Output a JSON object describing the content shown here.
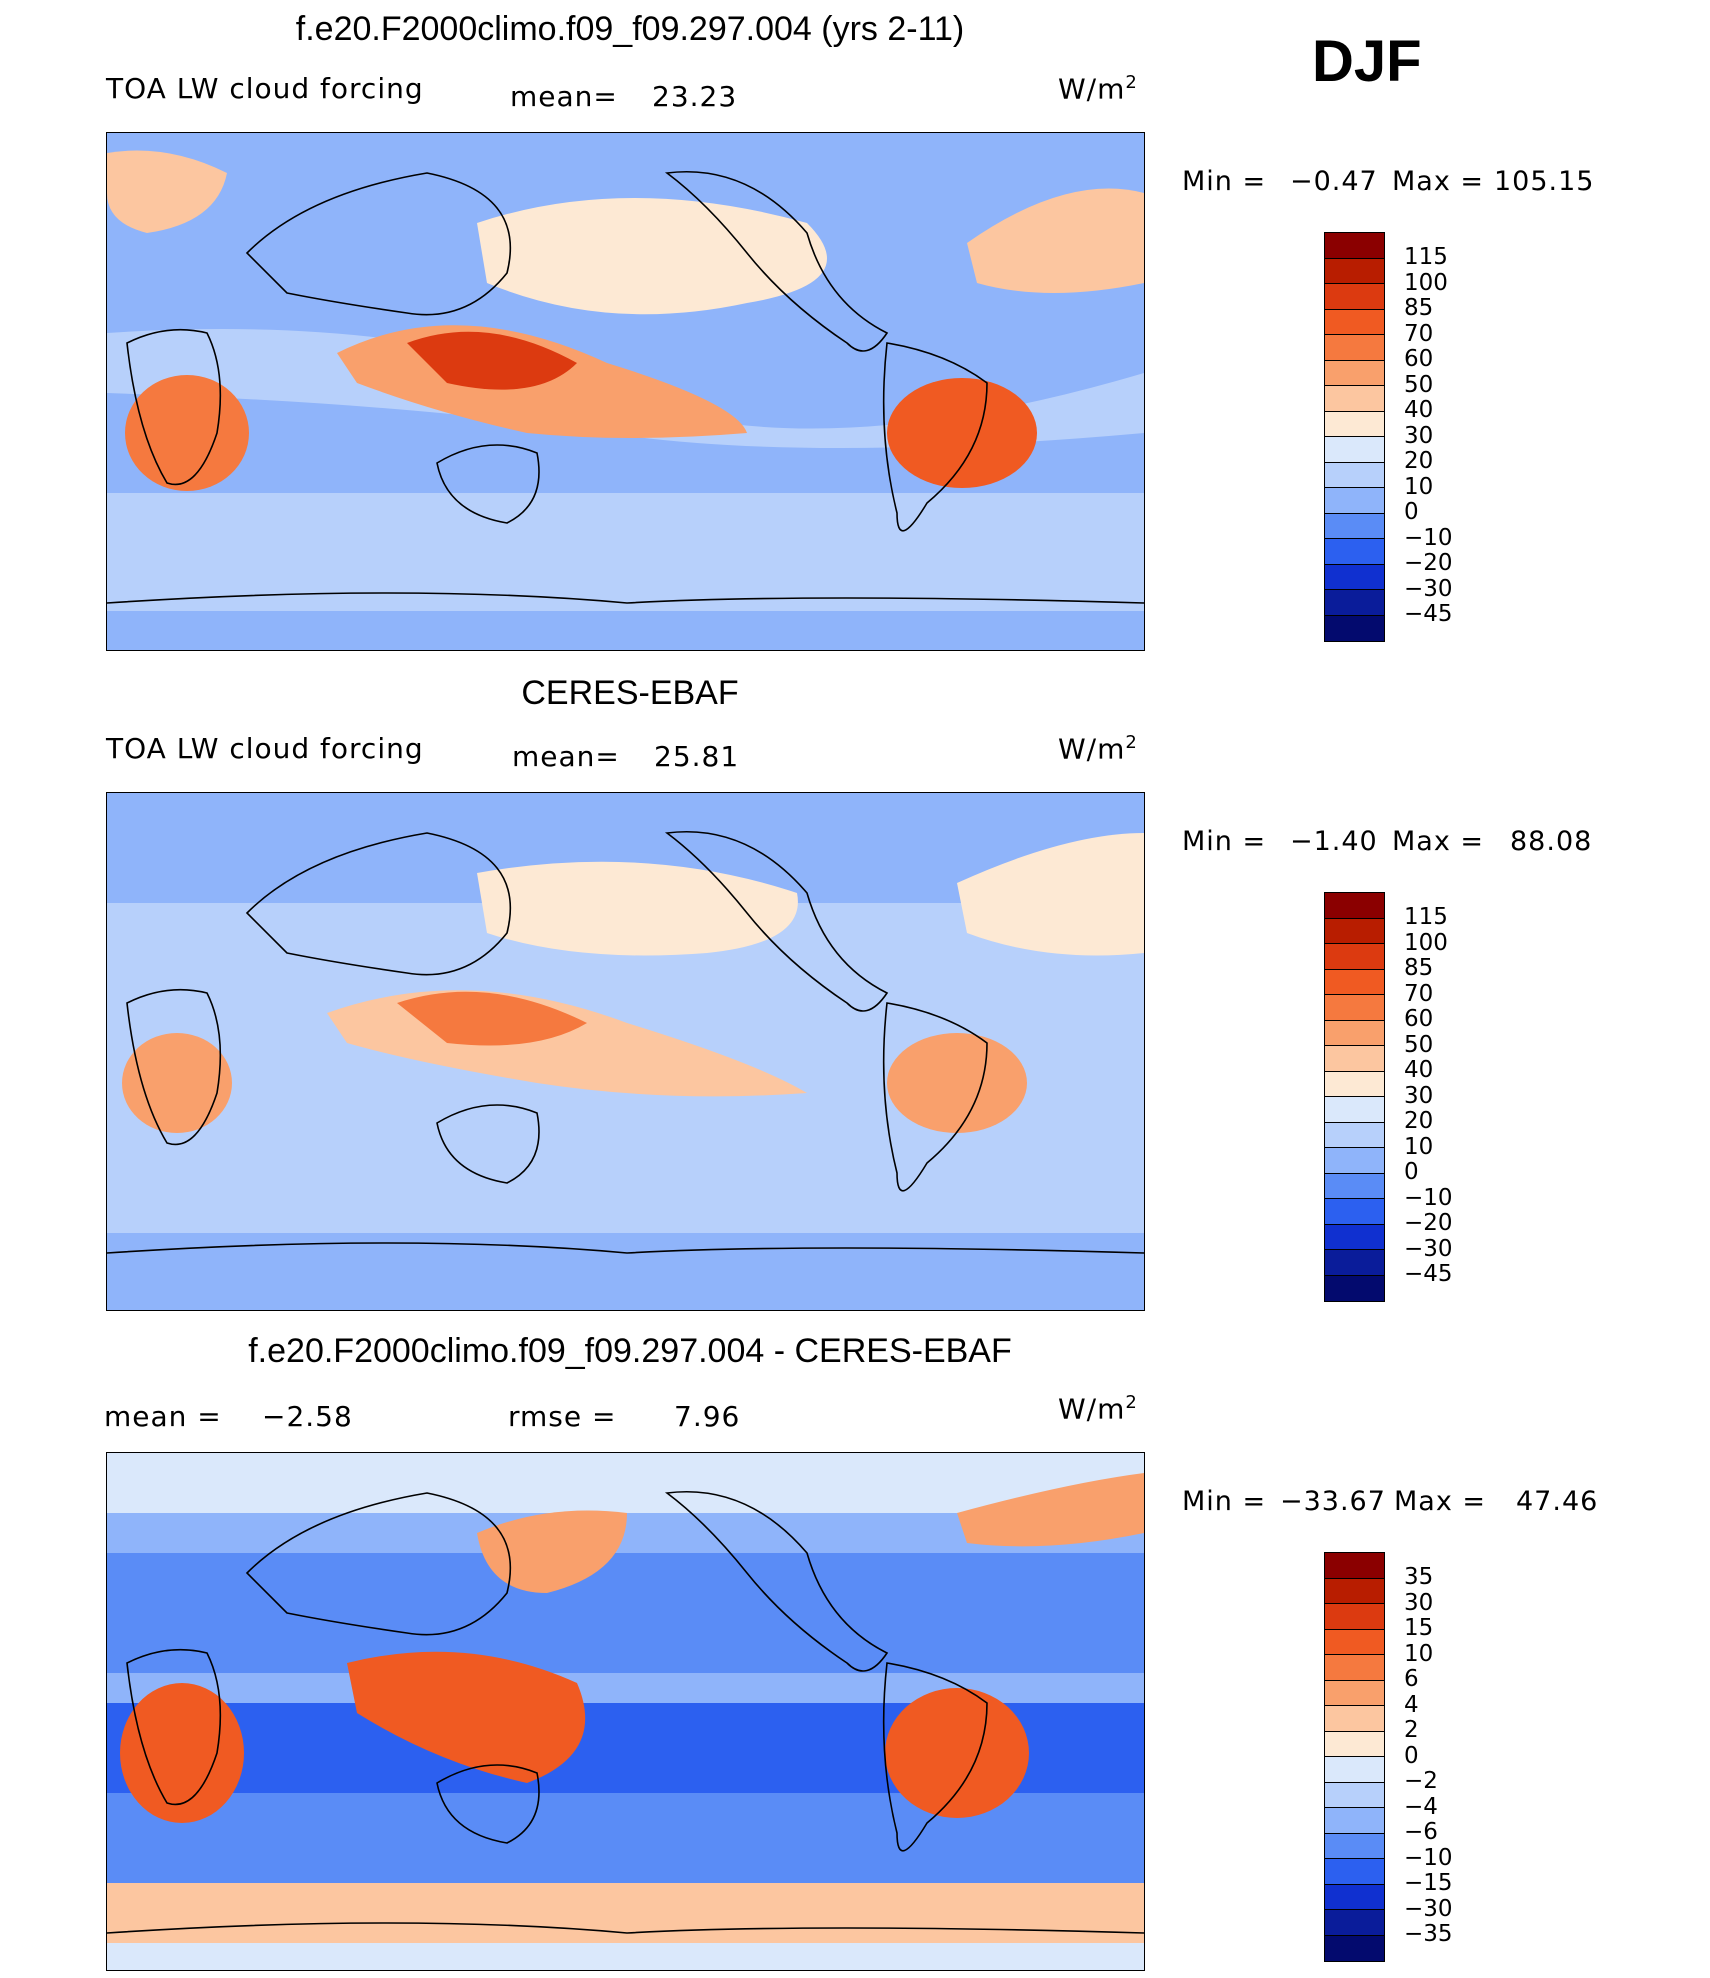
{
  "figure": {
    "season": "DJF"
  },
  "panels": [
    {
      "title": "f.e20.F2000climo.f09_f09.297.004 (yrs 2-11)",
      "left_label": "TOA LW cloud forcing",
      "mean_label": "mean=",
      "mean_value": "23.23",
      "units": "W/m",
      "units_sup": "2",
      "min_label": "Min =",
      "min_value": "−0.47",
      "max_label": "Max =",
      "max_value": "105.15",
      "levels": [
        "115",
        "100",
        "85",
        "70",
        "60",
        "50",
        "40",
        "30",
        "20",
        "10",
        "0",
        "−10",
        "−20",
        "−30",
        "−45"
      ]
    },
    {
      "title": "CERES-EBAF",
      "left_label": "TOA LW cloud forcing",
      "mean_label": "mean=",
      "mean_value": "25.81",
      "units": "W/m",
      "units_sup": "2",
      "min_label": "Min =",
      "min_value": "−1.40",
      "max_label": "Max =",
      "max_value": "88.08",
      "levels": [
        "115",
        "100",
        "85",
        "70",
        "60",
        "50",
        "40",
        "30",
        "20",
        "10",
        "0",
        "−10",
        "−20",
        "−30",
        "−45"
      ]
    },
    {
      "title": "f.e20.F2000climo.f09_f09.297.004 - CERES-EBAF",
      "left_label": "mean =",
      "mean_value": "−2.58",
      "rmse_label": "rmse =",
      "rmse_value": "7.96",
      "units": "W/m",
      "units_sup": "2",
      "min_label": "Min =",
      "min_value": "−33.67",
      "max_label": "Max =",
      "max_value": "47.46",
      "levels": [
        "35",
        "30",
        "15",
        "10",
        "6",
        "4",
        "2",
        "0",
        "−2",
        "−4",
        "−6",
        "−10",
        "−15",
        "−30",
        "−35"
      ]
    }
  ],
  "colorbar_colors": [
    "#8b0000",
    "#b81d00",
    "#dc3a10",
    "#f05a22",
    "#f5793f",
    "#f9a06c",
    "#fcc6a0",
    "#fde9d4",
    "#dae8fb",
    "#b7d0fb",
    "#8fb4fa",
    "#5a8cf6",
    "#2c60f0",
    "#1030d0",
    "#0a1c9a",
    "#030a6e"
  ],
  "chart_data": [
    {
      "type": "heatmap",
      "title": "f.e20.F2000climo.f09_f09.297.004 (yrs 2-11)",
      "variable": "TOA LW cloud forcing",
      "units": "W/m2",
      "mean": 23.23,
      "min": -0.47,
      "max": 105.15,
      "contour_levels": [
        115,
        100,
        85,
        70,
        60,
        50,
        40,
        30,
        20,
        10,
        0,
        -10,
        -20,
        -30,
        -45
      ]
    },
    {
      "type": "heatmap",
      "title": "CERES-EBAF",
      "variable": "TOA LW cloud forcing",
      "units": "W/m2",
      "mean": 25.81,
      "min": -1.4,
      "max": 88.08,
      "contour_levels": [
        115,
        100,
        85,
        70,
        60,
        50,
        40,
        30,
        20,
        10,
        0,
        -10,
        -20,
        -30,
        -45
      ]
    },
    {
      "type": "heatmap",
      "title": "f.e20.F2000climo.f09_f09.297.004 - CERES-EBAF",
      "units": "W/m2",
      "mean": -2.58,
      "rmse": 7.96,
      "min": -33.67,
      "max": 47.46,
      "contour_levels": [
        35,
        30,
        15,
        10,
        6,
        4,
        2,
        0,
        -2,
        -4,
        -6,
        -10,
        -15,
        -30,
        -35
      ]
    }
  ]
}
